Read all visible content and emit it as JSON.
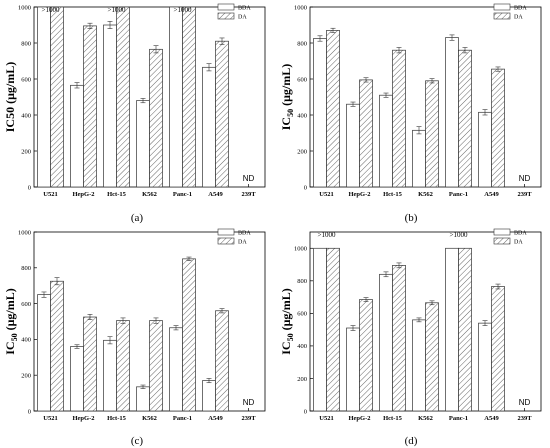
{
  "chart_data": [
    {
      "type": "bar",
      "panel_label": "(a)",
      "ylabel_main": "IC50 (μg/mL)",
      "ylabel_sub": "",
      "ylabel_rest": "",
      "ylim": [
        0,
        1000
      ],
      "yticks": [
        "0",
        "200",
        "400",
        "600",
        "800",
        "1000"
      ],
      "categories": [
        "U521",
        "HepG-2",
        "Hct-15",
        "K562",
        "Panc-1",
        "A549",
        "239T"
      ],
      "legend": [
        "BDA",
        "DA"
      ],
      "series": [
        {
          "name": "BDA",
          "values": [
            1000,
            565,
            900,
            480,
            1000,
            665,
            null
          ],
          "errors": [
            0,
            15,
            20,
            12,
            0,
            20,
            0
          ]
        },
        {
          "name": "DA",
          "values": [
            1000,
            895,
            1000,
            765,
            1000,
            810,
            null
          ],
          "errors": [
            0,
            15,
            0,
            20,
            0,
            18,
            0
          ]
        }
      ],
      "annotations": [
        {
          "category": 0,
          "text": ">1000"
        },
        {
          "category": 2,
          "text": ">1000"
        },
        {
          "category": 4,
          "text": ">1000"
        }
      ],
      "nd": {
        "category": 6,
        "text": "ND"
      }
    },
    {
      "type": "bar",
      "panel_label": "(b)",
      "ylabel_main": "IC",
      "ylabel_sub": "50",
      "ylabel_rest": " (μg/mL)",
      "ylim": [
        0,
        1000
      ],
      "yticks": [
        "0",
        "200",
        "400",
        "600",
        "800",
        "1000"
      ],
      "categories": [
        "U521",
        "HepG-2",
        "Hct-15",
        "K562",
        "Panc-1",
        "A549",
        "239T"
      ],
      "legend": [
        "BDA",
        "DA"
      ],
      "series": [
        {
          "name": "BDA",
          "values": [
            825,
            460,
            510,
            315,
            830,
            415,
            null
          ],
          "errors": [
            15,
            12,
            12,
            20,
            15,
            15,
            0
          ]
        },
        {
          "name": "DA",
          "values": [
            870,
            595,
            760,
            590,
            760,
            655,
            null
          ],
          "errors": [
            12,
            12,
            15,
            12,
            15,
            12,
            0
          ]
        }
      ],
      "annotations": [],
      "nd": {
        "category": 6,
        "text": "ND"
      }
    },
    {
      "type": "bar",
      "panel_label": "(c)",
      "ylabel_main": "IC",
      "ylabel_sub": "50",
      "ylabel_rest": " (μg/mL)",
      "ylim": [
        0,
        1000
      ],
      "yticks": [
        "0",
        "200",
        "400",
        "600",
        "800",
        "1000"
      ],
      "categories": [
        "U521",
        "HepG-2",
        "Hct-15",
        "K562",
        "Panc-1",
        "A549",
        "239T"
      ],
      "legend": [
        "BDA",
        "DA"
      ],
      "series": [
        {
          "name": "BDA",
          "values": [
            650,
            360,
            395,
            135,
            465,
            170,
            null
          ],
          "errors": [
            15,
            10,
            20,
            10,
            12,
            12,
            0
          ]
        },
        {
          "name": "DA",
          "values": [
            725,
            525,
            505,
            505,
            850,
            560,
            null
          ],
          "errors": [
            20,
            15,
            15,
            15,
            10,
            12,
            0
          ]
        }
      ],
      "annotations": [],
      "nd": {
        "category": 6,
        "text": "ND"
      }
    },
    {
      "type": "bar",
      "panel_label": "(d)",
      "ylabel_main": "IC",
      "ylabel_sub": "50",
      "ylabel_rest": " (μg/mL)",
      "ylim": [
        0,
        1100
      ],
      "yticks": [
        "0",
        "200",
        "400",
        "600",
        "800",
        "1000"
      ],
      "categories": [
        "U521",
        "HepG-2",
        "Hct-15",
        "K562",
        "Panc-1",
        "A549",
        "239T"
      ],
      "legend": [
        "BDA",
        "DA"
      ],
      "series": [
        {
          "name": "BDA",
          "values": [
            1000,
            510,
            840,
            560,
            1000,
            540,
            null
          ],
          "errors": [
            0,
            15,
            15,
            12,
            0,
            15,
            0
          ]
        },
        {
          "name": "DA",
          "values": [
            1000,
            685,
            895,
            665,
            1000,
            765,
            null
          ],
          "errors": [
            0,
            12,
            15,
            12,
            0,
            15,
            0
          ]
        }
      ],
      "annotations": [
        {
          "category": 0,
          "text": ">1000"
        },
        {
          "category": 4,
          "text": ">1000"
        }
      ],
      "nd": {
        "category": 6,
        "text": "ND"
      }
    }
  ]
}
